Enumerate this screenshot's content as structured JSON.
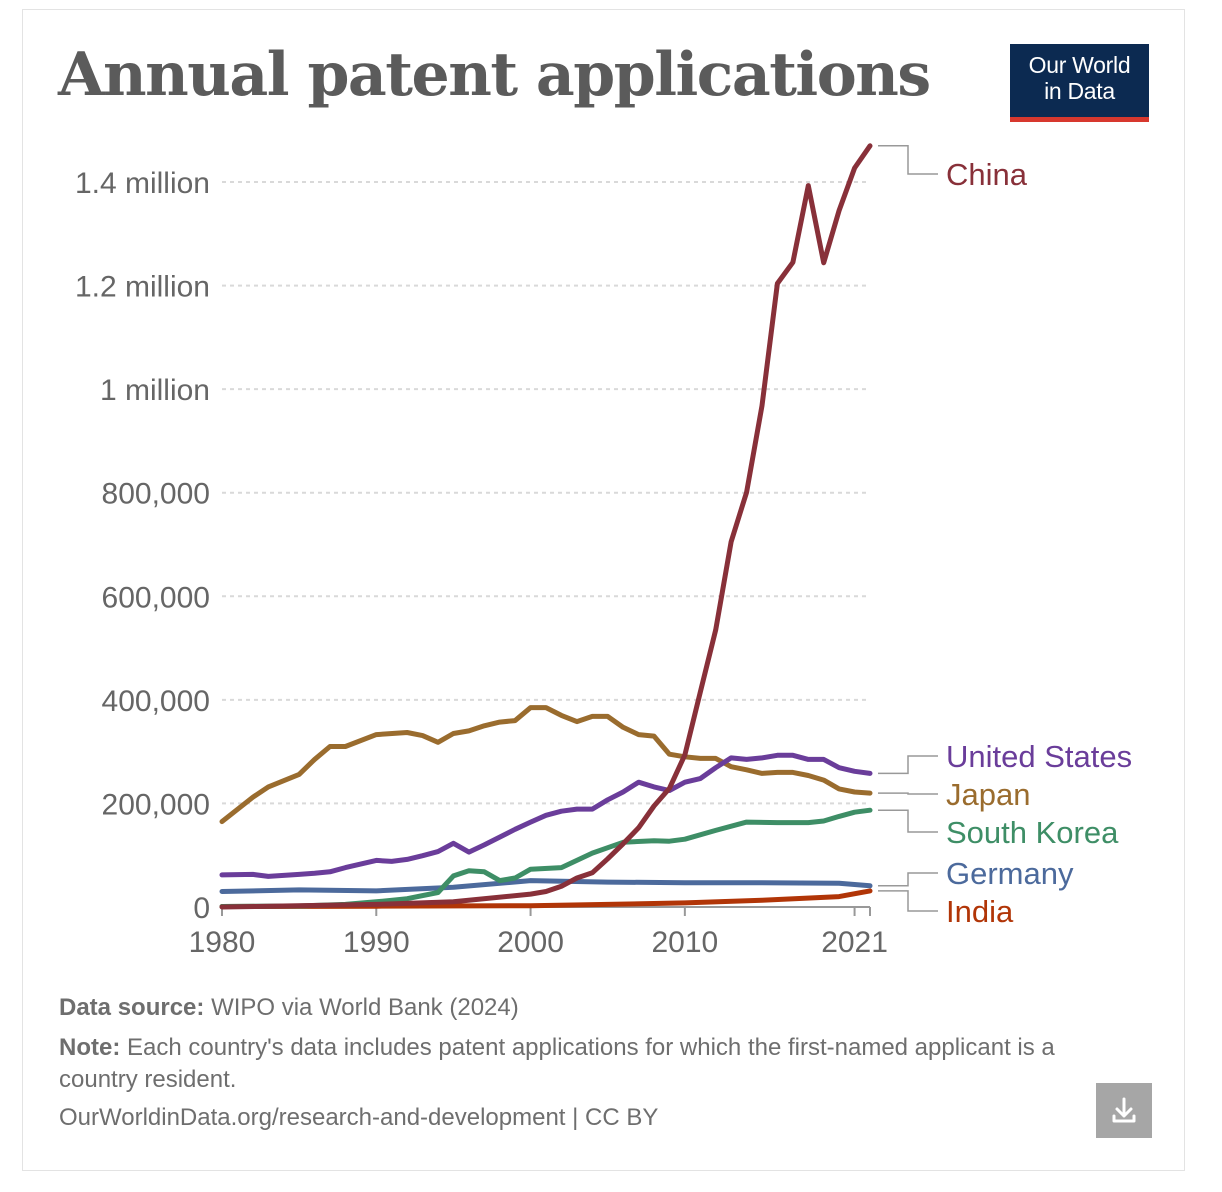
{
  "title": "Annual patent applications",
  "logo": {
    "line1": "Our World",
    "line2": "in Data"
  },
  "footer": {
    "source_label": "Data source:",
    "source_text": "WIPO via World Bank (2024)",
    "note_label": "Note:",
    "note_text": "Each country's data includes patent applications for which the first-named applicant is a country resident.",
    "url": "OurWorldinData.org/research-and-development",
    "license": "| CC BY"
  },
  "download_icon": "download-icon",
  "chart_data": {
    "type": "line",
    "title": "Annual patent applications",
    "xlabel": "",
    "ylabel": "",
    "xlim": [
      1980,
      2022
    ],
    "ylim": [
      0,
      1400000
    ],
    "grid": true,
    "x_ticks": [
      {
        "value": 1980,
        "label": "1980"
      },
      {
        "value": 1990,
        "label": "1990"
      },
      {
        "value": 2000,
        "label": "2000"
      },
      {
        "value": 2010,
        "label": "2010"
      },
      {
        "value": 2021,
        "label": "2021"
      }
    ],
    "y_ticks": [
      {
        "value": 0,
        "label": "0"
      },
      {
        "value": 200000,
        "label": "200,000"
      },
      {
        "value": 400000,
        "label": "400,000"
      },
      {
        "value": 600000,
        "label": "600,000"
      },
      {
        "value": 800000,
        "label": "800,000"
      },
      {
        "value": 1000000,
        "label": "1 million"
      },
      {
        "value": 1200000,
        "label": "1.2 million"
      },
      {
        "value": 1400000,
        "label": "1.4 million"
      }
    ],
    "series": [
      {
        "name": "Germany",
        "color": "#4c6a9c",
        "labelColor": "#4c6a9c",
        "x": [
          1980,
          1985,
          1990,
          1995,
          2000,
          2005,
          2010,
          2015,
          2020,
          2022
        ],
        "values": [
          30000,
          33000,
          31000,
          38000,
          51000,
          48000,
          47000,
          47000,
          46000,
          41000
        ]
      },
      {
        "name": "India",
        "color": "#b13507",
        "labelColor": "#b13507",
        "x": [
          1980,
          1990,
          2000,
          2005,
          2010,
          2015,
          2020,
          2022
        ],
        "values": [
          1000,
          1500,
          2500,
          5000,
          8000,
          13000,
          20000,
          31000
        ]
      },
      {
        "name": "South Korea",
        "color": "#3e8e66",
        "labelColor": "#3e8e66",
        "x": [
          1980,
          1985,
          1988,
          1990,
          1992,
          1994,
          1995,
          1996,
          1997,
          1998,
          1999,
          2000,
          2002,
          2004,
          2006,
          2008,
          2009,
          2010,
          2012,
          2014,
          2016,
          2018,
          2019,
          2020,
          2021,
          2022
        ],
        "values": [
          1000,
          2000,
          5000,
          10000,
          16000,
          28000,
          60000,
          70000,
          68000,
          51000,
          56000,
          73000,
          76000,
          104000,
          125000,
          128000,
          127000,
          131000,
          148000,
          164000,
          163000,
          163000,
          166000,
          175000,
          183000,
          187000
        ]
      },
      {
        "name": "Japan",
        "color": "#9a6c2e",
        "labelColor": "#9a6c2e",
        "x": [
          1980,
          1982,
          1983,
          1985,
          1986,
          1987,
          1988,
          1990,
          1992,
          1993,
          1994,
          1995,
          1996,
          1997,
          1998,
          1999,
          2000,
          2001,
          2002,
          2003,
          2004,
          2005,
          2006,
          2007,
          2008,
          2009,
          2010,
          2011,
          2012,
          2013,
          2014,
          2015,
          2016,
          2017,
          2018,
          2019,
          2020,
          2021,
          2022
        ],
        "values": [
          165000,
          212000,
          232000,
          256000,
          285000,
          310000,
          310000,
          333000,
          337000,
          331000,
          318000,
          335000,
          340000,
          350000,
          357000,
          360000,
          385000,
          385000,
          370000,
          358000,
          368000,
          368000,
          347000,
          333000,
          330000,
          295000,
          290000,
          287000,
          287000,
          271000,
          265000,
          258000,
          260000,
          260000,
          254000,
          245000,
          228000,
          222000,
          220000
        ]
      },
      {
        "name": "United States",
        "color": "#6a3d9a",
        "labelColor": "#6a3d9a",
        "x": [
          1980,
          1982,
          1983,
          1985,
          1986,
          1987,
          1988,
          1990,
          1991,
          1992,
          1993,
          1994,
          1995,
          1996,
          1997,
          1998,
          1999,
          2000,
          2001,
          2002,
          2003,
          2004,
          2005,
          2006,
          2007,
          2008,
          2009,
          2010,
          2011,
          2012,
          2013,
          2014,
          2015,
          2016,
          2017,
          2018,
          2019,
          2020,
          2021,
          2022
        ],
        "values": [
          62000,
          63000,
          59000,
          63000,
          65000,
          68000,
          76000,
          90000,
          88000,
          92000,
          99000,
          107000,
          123000,
          106000,
          120000,
          135000,
          150000,
          164000,
          177000,
          185000,
          189000,
          189000,
          207000,
          222000,
          241000,
          232000,
          225000,
          241000,
          248000,
          269000,
          288000,
          285000,
          288000,
          293000,
          293000,
          285000,
          285000,
          269000,
          262000,
          258000
        ]
      },
      {
        "name": "China",
        "color": "#883039",
        "labelColor": "#883039",
        "x": [
          1980,
          1990,
          1995,
          2000,
          2001,
          2002,
          2003,
          2004,
          2005,
          2006,
          2007,
          2008,
          2009,
          2010,
          2011,
          2012,
          2013,
          2014,
          2015,
          2016,
          2017,
          2018,
          2019,
          2020,
          2021,
          2022
        ],
        "values": [
          0,
          5000,
          10000,
          25000,
          30000,
          40000,
          56000,
          66000,
          93000,
          122000,
          153000,
          195000,
          229000,
          294000,
          415000,
          535000,
          705000,
          801000,
          968000,
          1204000,
          1245000,
          1393000,
          1244000,
          1345000,
          1427000,
          1470000
        ]
      }
    ],
    "end_labels": [
      {
        "name": "China",
        "text": "China"
      },
      {
        "name": "United States",
        "text": "United States"
      },
      {
        "name": "Japan",
        "text": "Japan"
      },
      {
        "name": "South Korea",
        "text": "South Korea"
      },
      {
        "name": "Germany",
        "text": "Germany"
      },
      {
        "name": "India",
        "text": "India"
      }
    ]
  }
}
